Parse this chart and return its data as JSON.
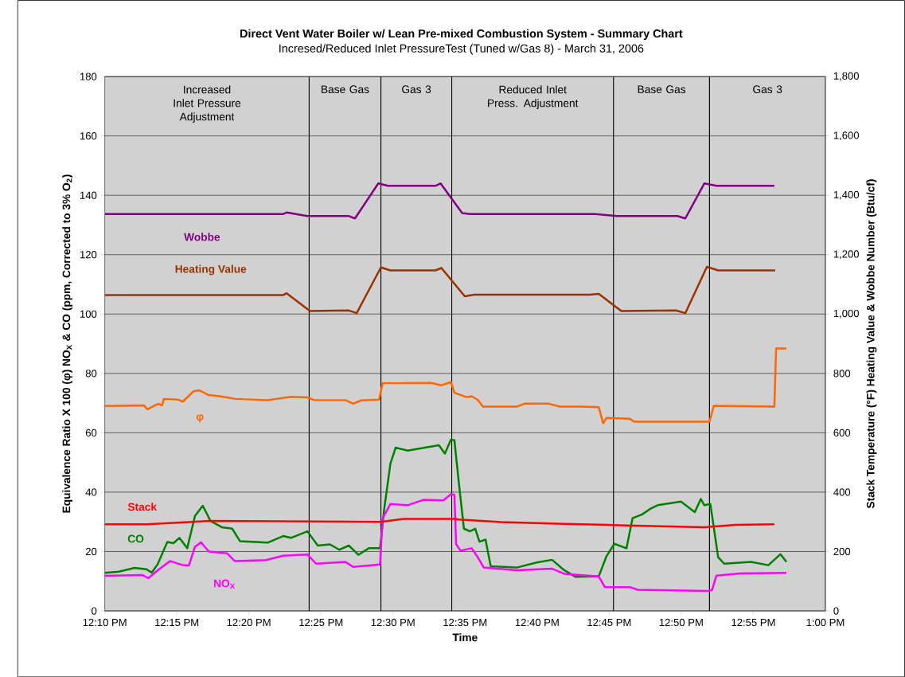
{
  "chart_data": {
    "type": "line",
    "title": "Direct Vent Water Boiler w/ Lean Pre-mixed Combustion System - Summary Chart",
    "subtitle": "Incresed/Reduced Inlet PressureTest (Tuned w/Gas 8) - March 31, 2006",
    "xlabel": "Time",
    "ylabel": "Equivalence Ratio X 100 (φ) NO$_{X}$ & CO (ppm, Corrected to 3% O$_{2}$)",
    "y2label": "Stack Temperature (°F) Heating Value & Wobbe Number (Btu/cf)",
    "xlim": [
      12.1667,
      13.0
    ],
    "xticks": [
      {
        "value": 12.1667,
        "label": "12:10 PM"
      },
      {
        "value": 12.25,
        "label": "12:15 PM"
      },
      {
        "value": 12.3333,
        "label": "12:20 PM"
      },
      {
        "value": 12.4167,
        "label": "12:25 PM"
      },
      {
        "value": 12.5,
        "label": "12:30 PM"
      },
      {
        "value": 12.5833,
        "label": "12:35 PM"
      },
      {
        "value": 12.6667,
        "label": "12:40 PM"
      },
      {
        "value": 12.75,
        "label": "12:45 PM"
      },
      {
        "value": 12.8333,
        "label": "12:50 PM"
      },
      {
        "value": 12.9167,
        "label": "12:55 PM"
      },
      {
        "value": 13.0,
        "label": "1:00 PM"
      }
    ],
    "ylim": [
      0,
      180
    ],
    "yticks": [
      0,
      20,
      40,
      60,
      80,
      100,
      120,
      140,
      160,
      180
    ],
    "y2lim": [
      0,
      1800
    ],
    "y2ticks": [
      {
        "value": 0,
        "label": "0"
      },
      {
        "value": 200,
        "label": "200"
      },
      {
        "value": 400,
        "label": "400"
      },
      {
        "value": 600,
        "label": "600"
      },
      {
        "value": 800,
        "label": "800"
      },
      {
        "value": 1000,
        "label": "1,000"
      },
      {
        "value": 1200,
        "label": "1,200"
      },
      {
        "value": 1400,
        "label": "1,400"
      },
      {
        "value": 1600,
        "label": "1,600"
      },
      {
        "value": 1800,
        "label": "1,800"
      }
    ],
    "grid": "y",
    "ref_lines": [
      {
        "axis": "x",
        "value": 12.403
      },
      {
        "axis": "x",
        "value": 12.486
      },
      {
        "axis": "x",
        "value": 12.568
      },
      {
        "axis": "x",
        "value": 12.755
      },
      {
        "axis": "x",
        "value": 12.866
      }
    ],
    "annotations": [
      "Increased Inlet Pressure Adjustment",
      "Base Gas",
      "Gas 3",
      "Reduced Inlet Press. Adjustment",
      "Base Gas",
      "Gas 3"
    ],
    "series": [
      {
        "name": "Wobbe",
        "color": "#800080",
        "axis": "y2",
        "x": [
          12.167,
          12.373,
          12.377,
          12.401,
          12.449,
          12.456,
          12.483,
          12.494,
          12.549,
          12.555,
          12.58,
          12.589,
          12.734,
          12.759,
          12.829,
          12.838,
          12.86,
          12.874,
          12.941
        ],
        "values": [
          1337,
          1337,
          1342,
          1330,
          1330,
          1322,
          1440,
          1432,
          1432,
          1440,
          1340,
          1337,
          1337,
          1330,
          1330,
          1322,
          1440,
          1432,
          1432
        ]
      },
      {
        "name": "Heating Value",
        "color": "#993300",
        "axis": "y2",
        "x": [
          12.167,
          12.373,
          12.377,
          12.404,
          12.449,
          12.458,
          12.486,
          12.497,
          12.549,
          12.556,
          12.583,
          12.594,
          12.727,
          12.738,
          12.764,
          12.827,
          12.838,
          12.863,
          12.876,
          12.942
        ],
        "values": [
          1064,
          1064,
          1070,
          1010,
          1012,
          1003,
          1157,
          1147,
          1147,
          1155,
          1060,
          1065,
          1065,
          1068,
          1010,
          1012,
          1003,
          1159,
          1147,
          1147
        ]
      },
      {
        "name": "φ",
        "color": "#ff6600",
        "x": [
          12.167,
          12.212,
          12.216,
          12.228,
          12.233,
          12.235,
          12.251,
          12.257,
          12.269,
          12.276,
          12.287,
          12.3,
          12.318,
          12.355,
          12.382,
          12.401,
          12.409,
          12.445,
          12.454,
          12.463,
          12.484,
          12.488,
          12.508,
          12.544,
          12.556,
          12.567,
          12.571,
          12.585,
          12.591,
          12.598,
          12.604,
          12.643,
          12.652,
          12.68,
          12.693,
          12.716,
          12.738,
          12.743,
          12.747,
          12.774,
          12.779,
          12.86,
          12.866,
          12.871,
          12.941,
          12.943,
          12.955
        ],
        "values": [
          69.0,
          69.2,
          67.9,
          69.7,
          69.3,
          71.4,
          71.2,
          70.5,
          73.9,
          74.3,
          72.7,
          72.3,
          71.4,
          71.0,
          72.1,
          71.9,
          71.0,
          71.0,
          69.8,
          70.9,
          71.2,
          76.7,
          76.7,
          76.8,
          76.0,
          77.1,
          73.5,
          72.0,
          72.3,
          71.1,
          68.8,
          68.8,
          69.8,
          69.8,
          68.8,
          68.8,
          68.6,
          63.2,
          65.0,
          64.7,
          63.7,
          63.7,
          63.8,
          69.1,
          68.8,
          88.4,
          88.4
        ]
      },
      {
        "name": "Stack",
        "color": "#ff0000",
        "axis": "y2",
        "x": [
          12.167,
          12.215,
          12.287,
          12.486,
          12.512,
          12.571,
          12.576,
          12.625,
          12.698,
          12.77,
          12.86,
          12.896,
          12.941
        ],
        "values": [
          292,
          292,
          303,
          300,
          310,
          310,
          308,
          299,
          293,
          288,
          282,
          290,
          292
        ]
      },
      {
        "name": "CO",
        "color": "#008000",
        "x": [
          12.167,
          12.183,
          12.201,
          12.215,
          12.221,
          12.228,
          12.239,
          12.246,
          12.253,
          12.262,
          12.271,
          12.28,
          12.289,
          12.302,
          12.314,
          12.323,
          12.355,
          12.373,
          12.382,
          12.401,
          12.413,
          12.427,
          12.438,
          12.449,
          12.46,
          12.472,
          12.485,
          12.49,
          12.497,
          12.503,
          12.517,
          12.553,
          12.56,
          12.567,
          12.571,
          12.576,
          12.582,
          12.589,
          12.595,
          12.6,
          12.607,
          12.613,
          12.643,
          12.666,
          12.684,
          12.698,
          12.711,
          12.738,
          12.747,
          12.756,
          12.77,
          12.777,
          12.788,
          12.797,
          12.806,
          12.833,
          12.849,
          12.856,
          12.86,
          12.867,
          12.876,
          12.883,
          12.914,
          12.934,
          12.948,
          12.955
        ],
        "values": [
          12.8,
          13.2,
          14.5,
          14.0,
          12.9,
          15.8,
          23.2,
          22.8,
          24.6,
          21.1,
          32.0,
          35.4,
          30.3,
          28.2,
          27.7,
          23.5,
          23.0,
          25.2,
          24.6,
          26.8,
          22.0,
          22.4,
          20.6,
          22.0,
          18.9,
          21.1,
          21.1,
          34.7,
          49.6,
          55.0,
          54.0,
          55.8,
          53.0,
          57.7,
          57.5,
          43.5,
          27.7,
          26.8,
          27.7,
          23.3,
          24.0,
          15.0,
          14.6,
          16.3,
          17.2,
          13.7,
          11.5,
          11.7,
          18.5,
          22.6,
          21.1,
          31.2,
          32.5,
          34.3,
          35.6,
          36.8,
          33.3,
          37.7,
          35.6,
          36.0,
          18.1,
          15.9,
          16.5,
          15.4,
          19.1,
          16.5
        ]
      },
      {
        "name": "NO$_{X}$",
        "color": "#ff00ff",
        "x": [
          12.167,
          12.21,
          12.217,
          12.228,
          12.242,
          12.257,
          12.264,
          12.271,
          12.278,
          12.287,
          12.308,
          12.317,
          12.353,
          12.373,
          12.401,
          12.411,
          12.445,
          12.454,
          12.485,
          12.488,
          12.497,
          12.517,
          12.535,
          12.558,
          12.567,
          12.571,
          12.573,
          12.578,
          12.591,
          12.598,
          12.605,
          12.643,
          12.684,
          12.698,
          12.738,
          12.745,
          12.774,
          12.783,
          12.865,
          12.869,
          12.874,
          12.901,
          12.955
        ],
        "values": [
          11.8,
          12.1,
          11.0,
          13.7,
          16.8,
          15.4,
          15.3,
          21.6,
          23.1,
          20.0,
          19.4,
          16.8,
          17.1,
          18.6,
          19.0,
          15.9,
          16.5,
          14.8,
          15.6,
          31.2,
          36.0,
          35.6,
          37.4,
          37.2,
          39.3,
          39.1,
          22.5,
          20.3,
          21.1,
          18.1,
          14.6,
          13.7,
          14.2,
          12.5,
          11.6,
          8.0,
          8.0,
          7.1,
          6.7,
          7.1,
          11.9,
          12.6,
          12.8
        ]
      }
    ]
  }
}
